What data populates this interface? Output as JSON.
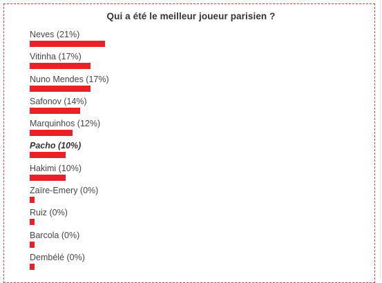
{
  "poll": {
    "title": "Qui a été le meilleur joueur parisien ?",
    "bar_color": "#e8202a",
    "options": [
      {
        "label": "Neves (21%)",
        "percent": 21,
        "selected": false
      },
      {
        "label": "Vitinha (17%)",
        "percent": 17,
        "selected": false
      },
      {
        "label": "Nuno Mendes (17%)",
        "percent": 17,
        "selected": false
      },
      {
        "label": "Safonov (14%)",
        "percent": 14,
        "selected": false
      },
      {
        "label": "Marquinhos (12%)",
        "percent": 12,
        "selected": false
      },
      {
        "label": "Pacho (10%)",
        "percent": 10,
        "selected": true
      },
      {
        "label": "Hakimi (10%)",
        "percent": 10,
        "selected": false
      },
      {
        "label": "Zaïre-Emery (0%)",
        "percent": 0,
        "selected": false
      },
      {
        "label": "Ruiz (0%)",
        "percent": 0,
        "selected": false
      },
      {
        "label": "Barcola (0%)",
        "percent": 0,
        "selected": false
      },
      {
        "label": "Dembélé (0%)",
        "percent": 0,
        "selected": false
      }
    ]
  }
}
